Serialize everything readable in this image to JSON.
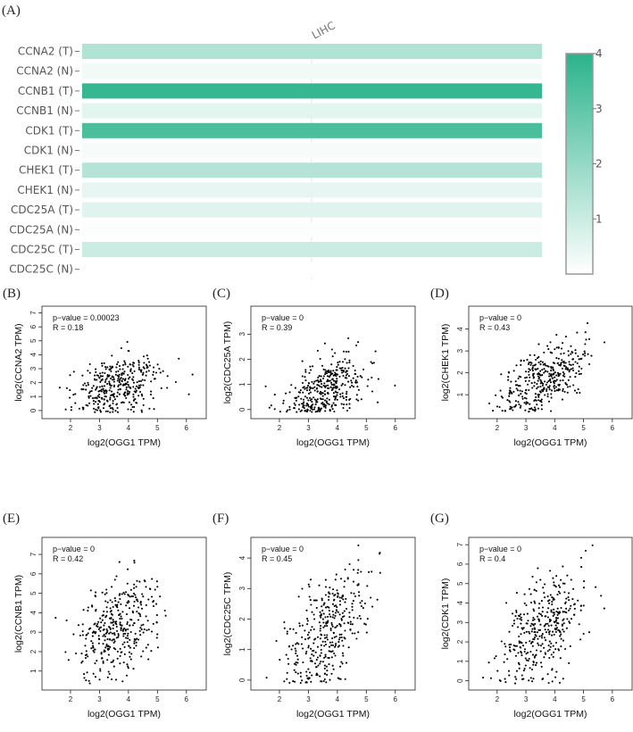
{
  "colors": {
    "accent": "#2bb38b",
    "low": "#ffffff",
    "frame": "#999999",
    "point": "#000000"
  },
  "heatmap": {
    "panel_label": "(A)",
    "column_label": "LIHC",
    "rows": [
      {
        "label": "CCNA2 (T)",
        "value": 1.5
      },
      {
        "label": "CCNA2 (N)",
        "value": 0.25
      },
      {
        "label": "CCNB1 (T)",
        "value": 3.8
      },
      {
        "label": "CCNB1 (N)",
        "value": 0.55
      },
      {
        "label": "CDK1 (T)",
        "value": 3.4
      },
      {
        "label": "CDK1 (N)",
        "value": 0.15
      },
      {
        "label": "CHEK1 (T)",
        "value": 1.4
      },
      {
        "label": "CHEK1 (N)",
        "value": 0.45
      },
      {
        "label": "CDC25A (T)",
        "value": 0.6
      },
      {
        "label": "CDC25A (N)",
        "value": 0.05
      },
      {
        "label": "CDC25C (T)",
        "value": 1.0
      },
      {
        "label": "CDC25C (N)",
        "value": 0.0
      }
    ],
    "colorbar": {
      "min": 0,
      "max": 4,
      "ticks": [
        "1",
        "2",
        "3",
        "4"
      ]
    }
  },
  "chart_data": [
    {
      "type": "scatter",
      "panel": "(B)",
      "xlabel": "log2(OGG1 TPM)",
      "ylabel": "log2(CCNA2 TPM)",
      "pvalue": "p−value = 0.00023",
      "r": "R = 0.18",
      "xlim": [
        1.2,
        6.5
      ],
      "ylim": [
        -0.2,
        7.1
      ],
      "xticks": [
        "2",
        "3",
        "4",
        "5",
        "6"
      ],
      "yticks": [
        "0",
        "1",
        "2",
        "3",
        "4",
        "5",
        "6",
        "7"
      ],
      "mean_y": 1.8,
      "slope": 0.55,
      "noise": 1.05,
      "n": 370,
      "seed": 11
    },
    {
      "type": "scatter",
      "panel": "(C)",
      "xlabel": "log2(OGG1 TPM)",
      "ylabel": "log2(CDC25A TPM)",
      "pvalue": "p−value = 0",
      "r": "R = 0.39",
      "xlim": [
        1.2,
        6.5
      ],
      "ylim": [
        -0.15,
        3.9
      ],
      "xticks": [
        "2",
        "3",
        "4",
        "5",
        "6"
      ],
      "yticks": [
        "0",
        "1",
        "2",
        "3"
      ],
      "mean_y": 0.8,
      "slope": 0.42,
      "noise": 0.6,
      "n": 370,
      "seed": 23
    },
    {
      "type": "scatter",
      "panel": "(D)",
      "xlabel": "log2(OGG1 TPM)",
      "ylabel": "log2(CHEK1 TPM)",
      "pvalue": "p−value = 0",
      "r": "R = 0.43",
      "xlim": [
        1.2,
        6.5
      ],
      "ylim": [
        0.15,
        4.8
      ],
      "xticks": [
        "2",
        "3",
        "4",
        "5",
        "6"
      ],
      "yticks": [
        "1",
        "2",
        "3",
        "4"
      ],
      "mean_y": 1.7,
      "slope": 0.62,
      "noise": 0.7,
      "n": 370,
      "seed": 37
    },
    {
      "type": "scatter",
      "panel": "(E)",
      "xlabel": "log2(OGG1 TPM)",
      "ylabel": "log2(CCNB1 TPM)",
      "pvalue": "p−value = 0",
      "r": "R = 0.42",
      "xlim": [
        1.2,
        6.5
      ],
      "ylim": [
        0.3,
        7.6
      ],
      "xticks": [
        "2",
        "3",
        "4",
        "5",
        "6"
      ],
      "yticks": [
        "1",
        "2",
        "3",
        "4",
        "5",
        "6",
        "7"
      ],
      "mean_y": 3.2,
      "slope": 0.9,
      "noise": 1.25,
      "n": 370,
      "seed": 51
    },
    {
      "type": "scatter",
      "panel": "(F)",
      "xlabel": "log2(OGG1 TPM)",
      "ylabel": "log2(CDC25C TPM)",
      "pvalue": "p−value = 0",
      "r": "R = 0.45",
      "xlim": [
        1.2,
        6.5
      ],
      "ylim": [
        -0.15,
        4.5
      ],
      "xticks": [
        "2",
        "3",
        "4",
        "5",
        "6"
      ],
      "yticks": [
        "0",
        "1",
        "2",
        "3",
        "4"
      ],
      "mean_y": 1.4,
      "slope": 0.7,
      "noise": 0.85,
      "n": 370,
      "seed": 67
    },
    {
      "type": "scatter",
      "panel": "(G)",
      "xlabel": "log2(OGG1 TPM)",
      "ylabel": "log2(CDK1 TPM)",
      "pvalue": "p−value = 0",
      "r": "R = 0.4",
      "xlim": [
        1.2,
        6.5
      ],
      "ylim": [
        -0.2,
        7.1
      ],
      "xticks": [
        "2",
        "3",
        "4",
        "5",
        "6"
      ],
      "yticks": [
        "0",
        "1",
        "2",
        "3",
        "4",
        "5",
        "6",
        "7"
      ],
      "mean_y": 2.7,
      "slope": 0.95,
      "noise": 1.3,
      "n": 370,
      "seed": 83
    }
  ]
}
